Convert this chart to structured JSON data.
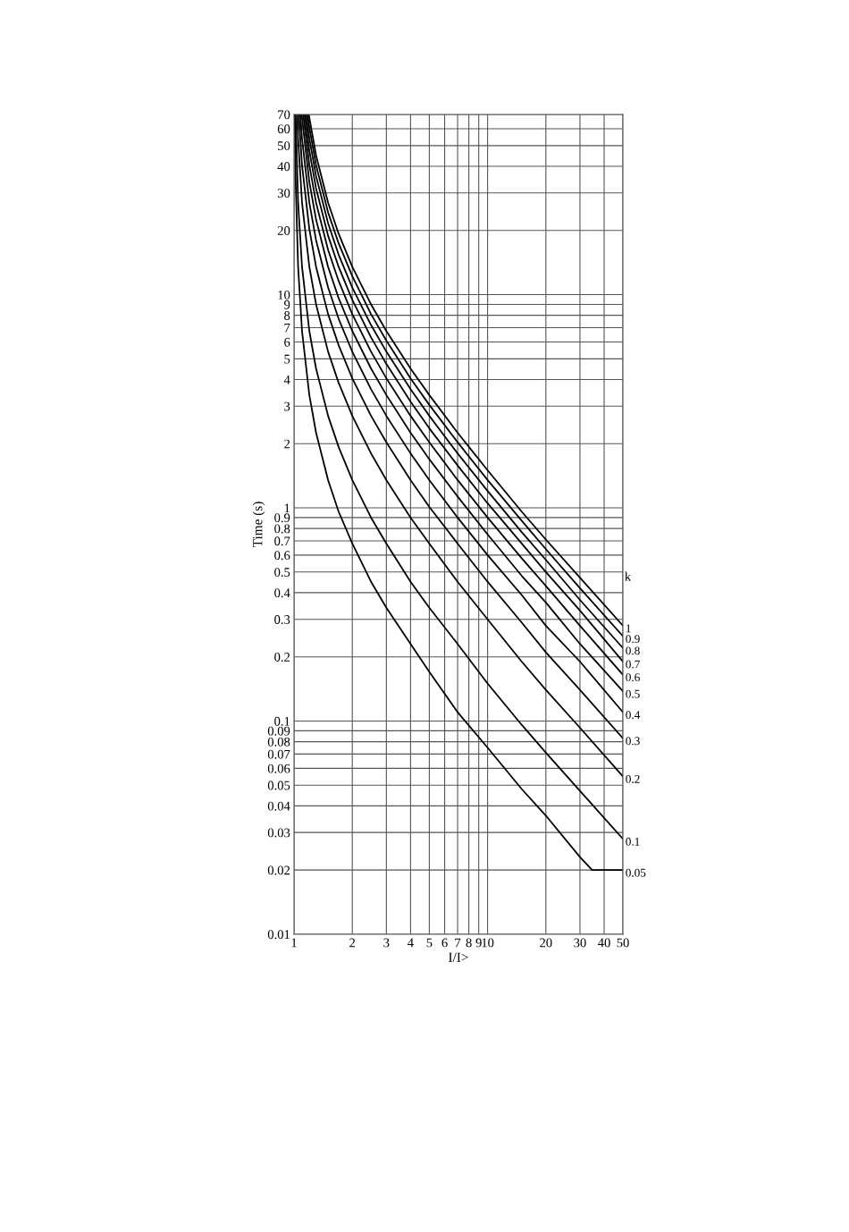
{
  "chart_data": {
    "type": "line",
    "xlabel": "I/I>",
    "ylabel": "Time (s)",
    "log": "xy",
    "grid": true,
    "legend": false,
    "marker": "none",
    "line_style": "solid",
    "xlim": [
      1,
      50
    ],
    "ylim": [
      0.01,
      70
    ],
    "xticks": [
      1,
      2,
      3,
      4,
      5,
      6,
      7,
      8,
      9,
      10,
      20,
      30,
      40,
      50
    ],
    "yticks": [
      0.01,
      0.02,
      0.03,
      0.04,
      0.05,
      0.06,
      0.07,
      0.08,
      0.09,
      0.1,
      0.2,
      0.3,
      0.4,
      0.5,
      0.6,
      0.7,
      0.8,
      0.9,
      1,
      2,
      3,
      4,
      5,
      6,
      7,
      8,
      9,
      10,
      20,
      30,
      40,
      50,
      60,
      70
    ],
    "annotations": [
      "k"
    ],
    "series": [
      {
        "name": "1",
        "color": "#000000",
        "x": [
          1.193,
          1.2,
          1.3,
          1.5,
          1.7,
          2,
          2.5,
          3,
          4,
          5,
          7,
          10,
          15,
          20,
          30,
          50
        ],
        "values": [
          70,
          67.5,
          45,
          27,
          19.3,
          13.5,
          9,
          6.75,
          4.5,
          3.38,
          2.25,
          1.5,
          0.96,
          0.71,
          0.47,
          0.28
        ]
      },
      {
        "name": "0.9",
        "color": "#000000",
        "x": [
          1.174,
          1.2,
          1.3,
          1.5,
          1.7,
          2,
          2.5,
          3,
          4,
          5,
          7,
          10,
          15,
          20,
          30,
          50
        ],
        "values": [
          70,
          60.8,
          40.5,
          24.3,
          17.4,
          12.2,
          8.1,
          6.08,
          4.05,
          3.04,
          2.03,
          1.35,
          0.87,
          0.64,
          0.42,
          0.25
        ]
      },
      {
        "name": "0.8",
        "color": "#000000",
        "x": [
          1.154,
          1.2,
          1.3,
          1.5,
          1.7,
          2,
          2.5,
          3,
          4,
          5,
          7,
          10,
          15,
          20,
          30,
          50
        ],
        "values": [
          70,
          54,
          36,
          21.6,
          15.4,
          10.8,
          7.2,
          5.4,
          3.6,
          2.7,
          1.8,
          1.2,
          0.77,
          0.57,
          0.37,
          0.22
        ]
      },
      {
        "name": "0.7",
        "color": "#000000",
        "x": [
          1.135,
          1.2,
          1.3,
          1.5,
          1.7,
          2,
          2.5,
          3,
          4,
          5,
          7,
          10,
          15,
          20,
          30,
          50
        ],
        "values": [
          70,
          47.3,
          31.5,
          18.9,
          13.5,
          9.45,
          6.3,
          4.73,
          3.15,
          2.36,
          1.58,
          1.05,
          0.68,
          0.5,
          0.33,
          0.19
        ]
      },
      {
        "name": "0.6",
        "color": "#000000",
        "x": [
          1.116,
          1.2,
          1.3,
          1.5,
          1.7,
          2,
          2.5,
          3,
          4,
          5,
          7,
          10,
          15,
          20,
          30,
          50
        ],
        "values": [
          70,
          40.5,
          27,
          16.2,
          11.6,
          8.1,
          5.4,
          4.05,
          2.7,
          2.03,
          1.35,
          0.9,
          0.58,
          0.43,
          0.28,
          0.165
        ]
      },
      {
        "name": "0.5",
        "color": "#000000",
        "x": [
          1.096,
          1.1,
          1.2,
          1.3,
          1.5,
          1.7,
          2,
          2.5,
          3,
          4,
          5,
          7,
          10,
          15,
          20,
          30,
          50
        ],
        "values": [
          70,
          67.5,
          33.8,
          22.5,
          13.5,
          9.64,
          6.75,
          4.5,
          3.38,
          2.25,
          1.69,
          1.13,
          0.75,
          0.48,
          0.36,
          0.23,
          0.138
        ]
      },
      {
        "name": "0.4",
        "color": "#000000",
        "x": [
          1.077,
          1.1,
          1.2,
          1.3,
          1.5,
          1.7,
          2,
          2.5,
          3,
          4,
          5,
          7,
          10,
          15,
          20,
          30,
          50
        ],
        "values": [
          70,
          54,
          27,
          18,
          10.8,
          7.71,
          5.4,
          3.6,
          2.7,
          1.8,
          1.35,
          0.9,
          0.6,
          0.39,
          0.28,
          0.19,
          0.11
        ]
      },
      {
        "name": "0.3",
        "color": "#000000",
        "x": [
          1.058,
          1.1,
          1.2,
          1.3,
          1.5,
          1.7,
          2,
          2.5,
          3,
          4,
          5,
          7,
          10,
          15,
          20,
          30,
          50
        ],
        "values": [
          70,
          40.5,
          20.3,
          13.5,
          8.1,
          5.79,
          4.05,
          2.7,
          2.03,
          1.35,
          1.01,
          0.68,
          0.45,
          0.29,
          0.21,
          0.14,
          0.083
        ]
      },
      {
        "name": "0.2",
        "color": "#000000",
        "x": [
          1.039,
          1.05,
          1.1,
          1.2,
          1.3,
          1.5,
          1.7,
          2,
          2.5,
          3,
          4,
          5,
          7,
          10,
          15,
          20,
          30,
          50
        ],
        "values": [
          70,
          54,
          27,
          13.5,
          9,
          5.4,
          3.86,
          2.7,
          1.8,
          1.35,
          0.9,
          0.68,
          0.45,
          0.3,
          0.19,
          0.14,
          0.093,
          0.055
        ]
      },
      {
        "name": "0.1",
        "color": "#000000",
        "x": [
          1.019,
          1.05,
          1.1,
          1.2,
          1.3,
          1.5,
          1.7,
          2,
          2.5,
          3,
          4,
          5,
          7,
          10,
          15,
          20,
          30,
          50
        ],
        "values": [
          70,
          27,
          13.5,
          6.75,
          4.5,
          2.7,
          1.93,
          1.35,
          0.9,
          0.68,
          0.45,
          0.34,
          0.23,
          0.15,
          0.096,
          0.071,
          0.047,
          0.028
        ]
      },
      {
        "name": "0.05",
        "color": "#000000",
        "x": [
          1.01,
          1.02,
          1.05,
          1.1,
          1.2,
          1.3,
          1.5,
          1.7,
          2,
          2.5,
          3,
          4,
          5,
          7,
          10,
          15,
          20,
          30,
          34.7,
          50
        ],
        "values": [
          70,
          33.8,
          13.5,
          6.75,
          3.38,
          2.25,
          1.35,
          0.96,
          0.68,
          0.45,
          0.34,
          0.23,
          0.17,
          0.11,
          0.075,
          0.048,
          0.036,
          0.023,
          0.02,
          0.02
        ]
      }
    ]
  }
}
